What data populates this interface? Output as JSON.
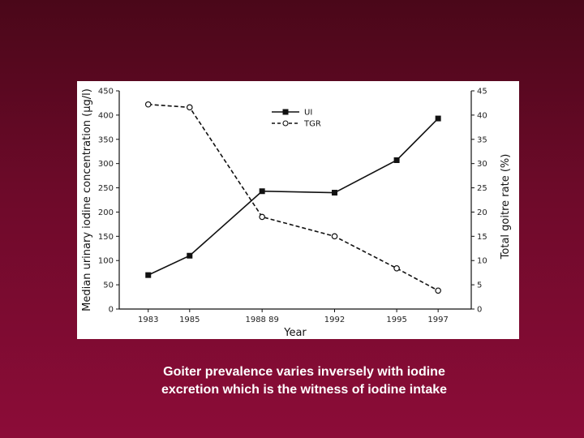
{
  "caption": {
    "line1": "Goiter prevalence varies inversely with iodine",
    "line2": "excretion which is the witness of iodine intake"
  },
  "colors": {
    "background_top": "#4a0719",
    "background_bottom": "#8c0c38",
    "caption_text": "#ffffff",
    "chart_bg": "#ffffff",
    "ink": "#111111"
  },
  "chart_data": {
    "type": "line",
    "xlabel": "Year",
    "ylabel_left": "Median urinary iodine concentration (μg/l)",
    "ylabel_right": "Total goitre rate (%)",
    "categories": [
      "1983",
      "1985",
      "1988 89",
      "1992",
      "1995",
      "1997"
    ],
    "x": [
      1983,
      1985,
      1988.5,
      1992,
      1995,
      1997
    ],
    "ylim_left": [
      0,
      450
    ],
    "ylim_right": [
      0,
      45
    ],
    "yticks_left": [
      "0",
      "50",
      "100",
      "150",
      "200",
      "250",
      "300",
      "350",
      "400",
      "450"
    ],
    "yticks_right": [
      "0",
      "5",
      "10",
      "15",
      "20",
      "25",
      "30",
      "35",
      "40",
      "45"
    ],
    "legend_position": "top-center",
    "grid": false,
    "series": [
      {
        "name": "UI",
        "axis": "left",
        "style": "solid",
        "marker": "filled-square",
        "values": [
          70,
          110,
          243,
          240,
          307,
          393
        ]
      },
      {
        "name": "TGR",
        "axis": "right",
        "style": "dashed",
        "marker": "open-circle",
        "values": [
          42.2,
          41.6,
          19,
          15,
          8.4,
          3.8
        ]
      }
    ]
  }
}
